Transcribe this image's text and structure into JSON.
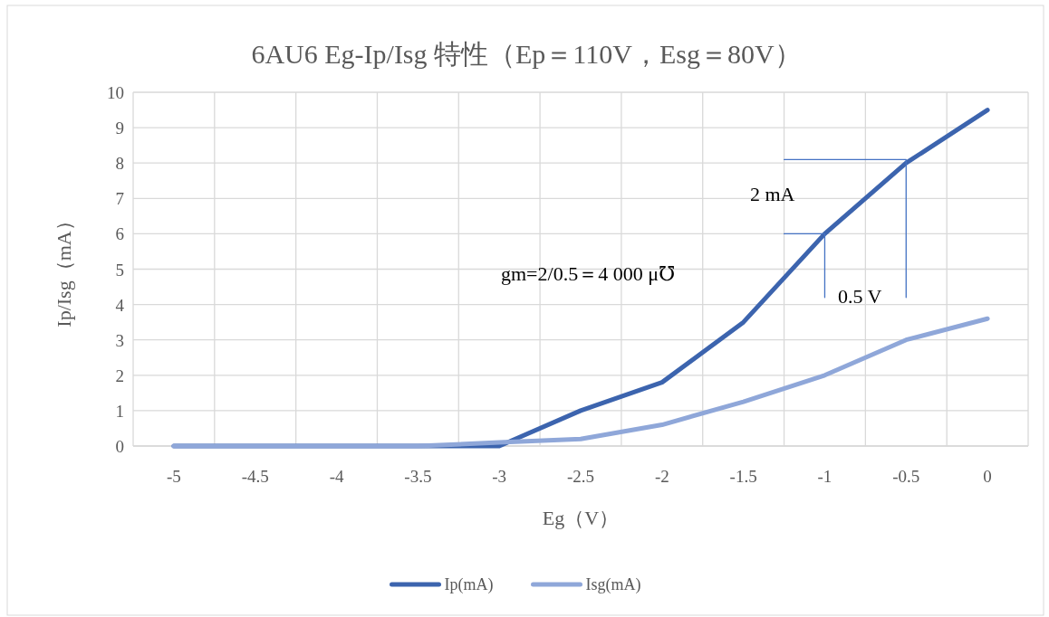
{
  "chart_data": {
    "type": "line",
    "title": "6AU6 Eg-Ip/Isg 特性（Ep＝110V，Esg＝80V）",
    "xlabel": "Eg（V）",
    "ylabel": "Ip/Isg（mA）",
    "x": [
      -5,
      -4.5,
      -4,
      -3.5,
      -3,
      -2.5,
      -2,
      -1.5,
      -1,
      -0.5,
      0
    ],
    "xlim": [
      -5.25,
      0.25
    ],
    "xticks": [
      {
        "value": -5.25,
        "label": null
      },
      -5,
      {
        "value": -4.75,
        "label": null
      },
      -4.5,
      {
        "value": -4.25,
        "label": null
      },
      -4,
      {
        "value": -3.75,
        "label": null
      },
      -3.5,
      {
        "value": -3.25,
        "label": null
      },
      -3,
      {
        "value": -2.75,
        "label": null
      },
      -2.5,
      {
        "value": -2.25,
        "label": null
      },
      -2,
      {
        "value": -1.75,
        "label": null
      },
      -1.5,
      {
        "value": -1.25,
        "label": null
      },
      -1,
      {
        "value": -0.75,
        "label": null
      },
      -0.5,
      {
        "value": -0.25,
        "label": null
      },
      0,
      {
        "value": 0.25,
        "label": null
      }
    ],
    "ylim": [
      0,
      10
    ],
    "yticks": [
      0,
      1,
      2,
      3,
      4,
      5,
      6,
      7,
      8,
      9,
      10
    ],
    "grid": true,
    "legend": "bottom",
    "series": [
      {
        "name": "Ip(mA)",
        "color": "#3c64ae",
        "values": [
          0,
          0,
          0,
          0,
          0,
          1,
          1.8,
          3.5,
          6,
          8,
          9.5
        ]
      },
      {
        "name": "Isg(mA)",
        "color": "#8fa7d9",
        "values": [
          0,
          0,
          0,
          0,
          0.1,
          0.2,
          0.6,
          1.25,
          2,
          3,
          3.6
        ]
      },
      {
        "type": "line",
        "color": "#4472c4",
        "x": [
          -1.25,
          -0.5,
          -0.5
        ],
        "values": [
          8.1,
          8.1,
          4.2
        ]
      },
      {
        "type": "line",
        "color": "#4472c4",
        "x": [
          -1.25,
          -1,
          -1
        ],
        "values": [
          6,
          6,
          4.2
        ]
      }
    ],
    "annotations": [
      "2 mA",
      "gm=2/0.5＝4 000 μ℧",
      "0.5 V"
    ]
  }
}
